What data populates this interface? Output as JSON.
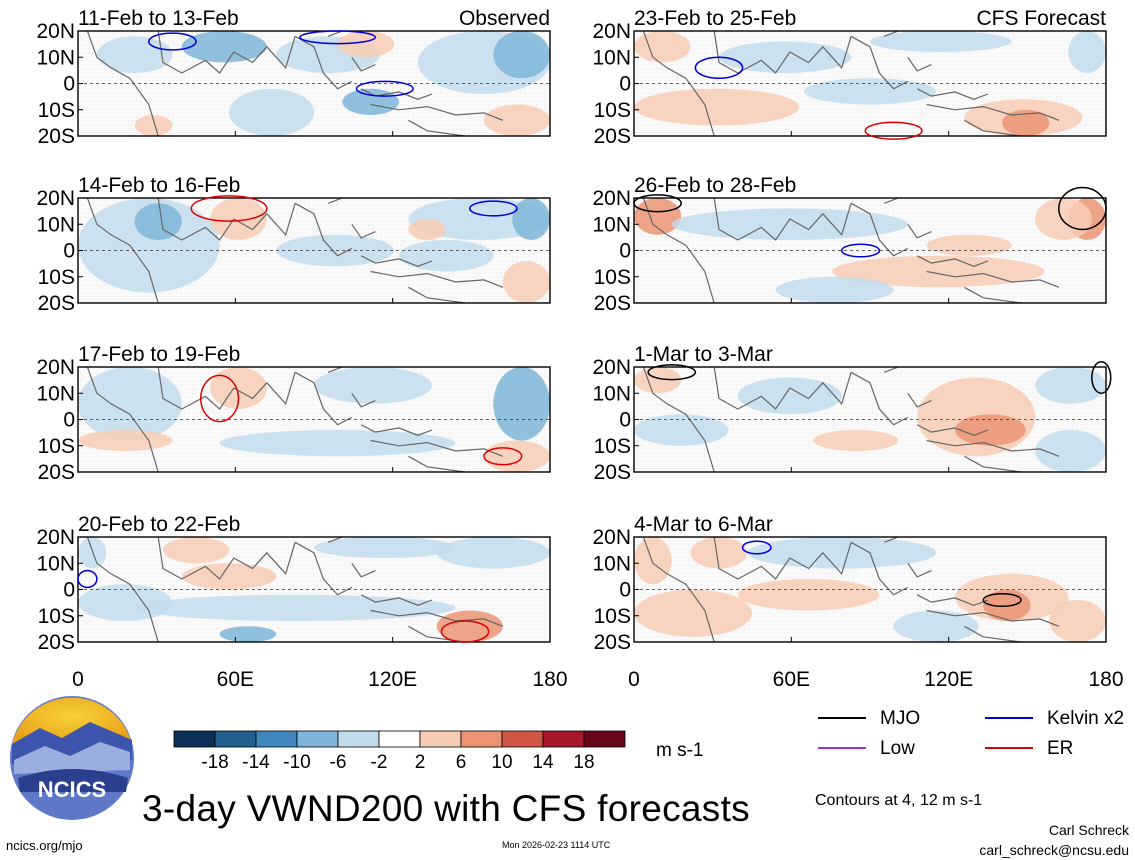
{
  "chart_data": {
    "type": "heatmap",
    "title": "3-day VWND200 with CFS forecasts",
    "variable": "VWND200",
    "units": "m s-1",
    "contour_note": "Contours at 4, 12 m s-1",
    "x_ticks": [
      "0",
      "60E",
      "120E",
      "180"
    ],
    "y_ticks": [
      "20N",
      "10N",
      "0",
      "10S",
      "20S"
    ],
    "xlim": [
      0,
      180
    ],
    "ylim": [
      -20,
      20
    ],
    "colorbar": {
      "labels": [
        "-18",
        "-14",
        "-10",
        "-6",
        "-2",
        "2",
        "6",
        "10",
        "14",
        "18"
      ],
      "colors": [
        "#0b3256",
        "#215f92",
        "#3f87bd",
        "#7eb5d8",
        "#c3dcec",
        "#ffffff",
        "#f7ccb5",
        "#eb9474",
        "#cf5545",
        "#a8182c",
        "#6a0418"
      ]
    },
    "contour_legend": [
      {
        "name": "MJO",
        "color": "#000000"
      },
      {
        "name": "Kelvin x2",
        "color": "#0000dd"
      },
      {
        "name": "Low",
        "color": "#9b30d9"
      },
      {
        "name": "ER",
        "color": "#dd0000"
      }
    ],
    "panels": [
      {
        "period": "11-Feb to 13-Feb",
        "tag": "Observed",
        "column": "observed"
      },
      {
        "period": "14-Feb to 16-Feb",
        "tag": "",
        "column": "observed"
      },
      {
        "period": "17-Feb to 19-Feb",
        "tag": "",
        "column": "observed"
      },
      {
        "period": "20-Feb to 22-Feb",
        "tag": "",
        "column": "observed"
      },
      {
        "period": "23-Feb to 25-Feb",
        "tag": "CFS Forecast",
        "column": "forecast"
      },
      {
        "period": "26-Feb to 28-Feb",
        "tag": "",
        "column": "forecast"
      },
      {
        "period": "1-Mar to 3-Mar",
        "tag": "",
        "column": "forecast"
      },
      {
        "period": "4-Mar to 6-Mar",
        "tag": "",
        "column": "forecast"
      }
    ]
  },
  "logo": {
    "text": "NCICS"
  },
  "footer": {
    "site": "ncics.org/mjo",
    "timestamp": "Mon 2026-02-23 1114 UTC",
    "author": "Carl Schreck",
    "email": "carl_schreck@ncsu.edu"
  }
}
